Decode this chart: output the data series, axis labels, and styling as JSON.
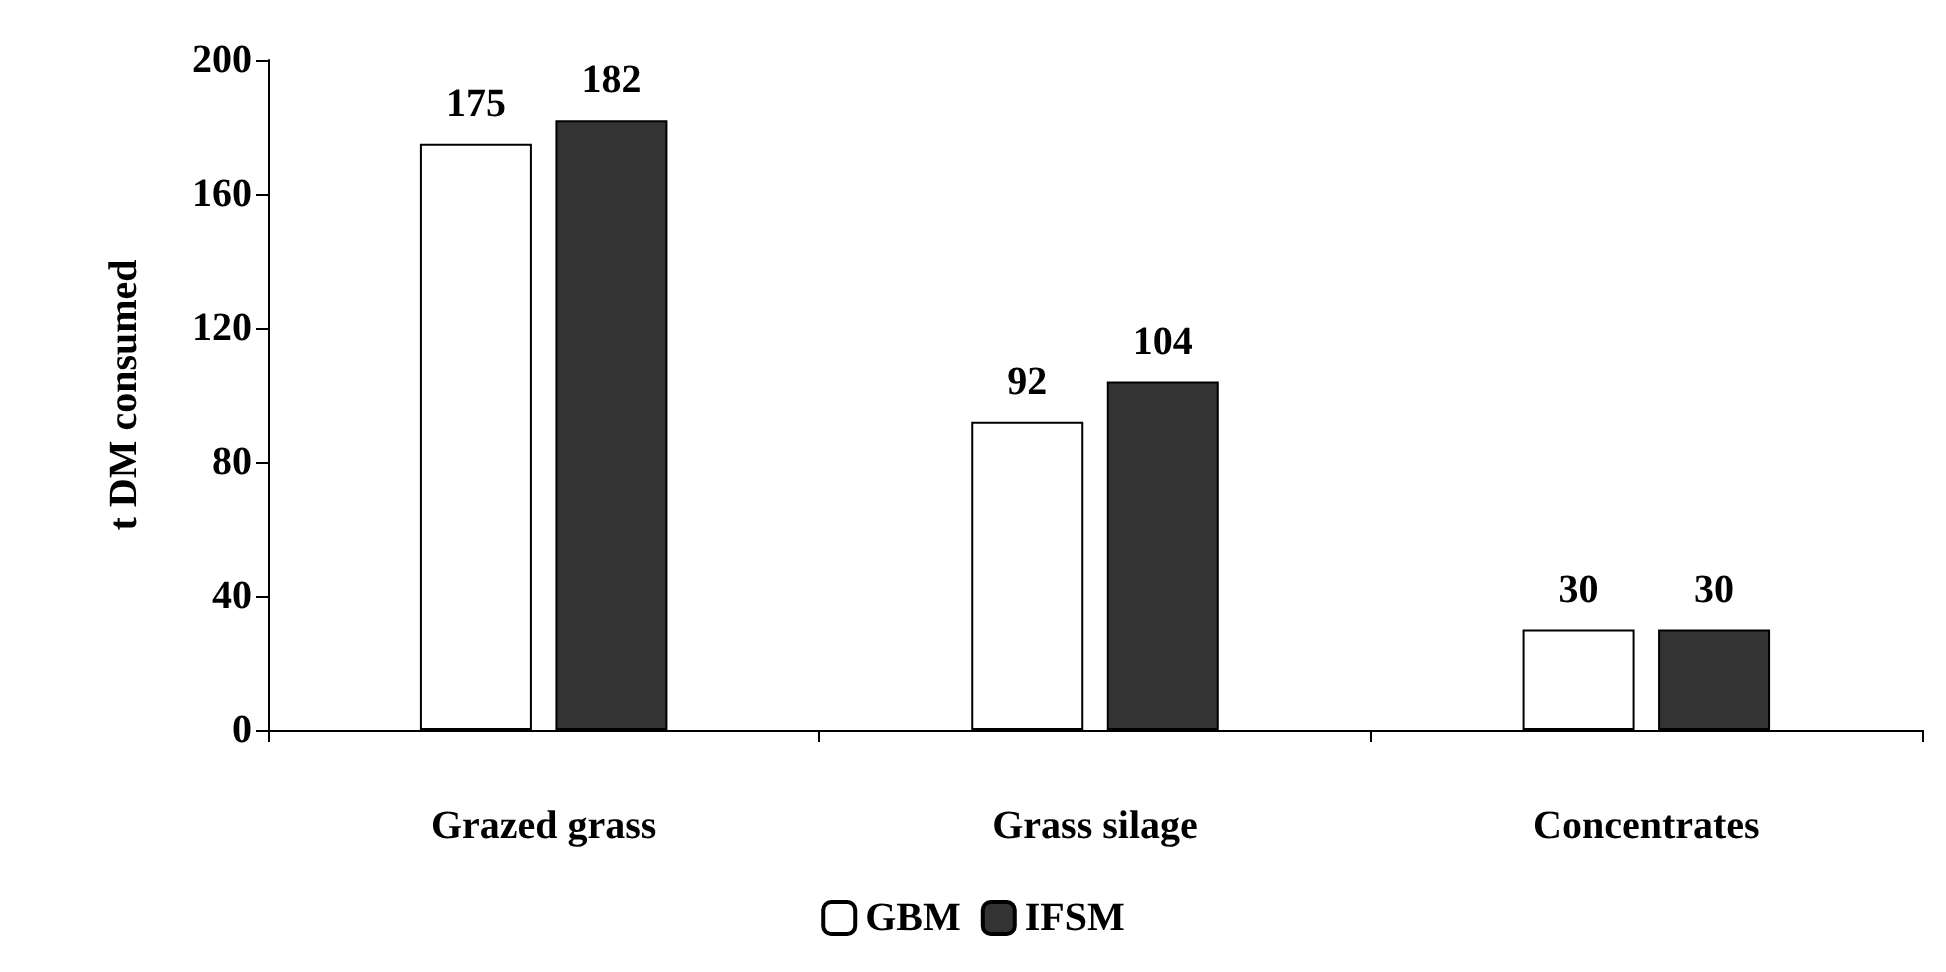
{
  "chart_data": {
    "type": "bar",
    "ylabel": "t DM consumed",
    "categories": [
      "Grazed grass",
      "Grass silage",
      "Concentrates"
    ],
    "series": [
      {
        "name": "GBM",
        "color": "#ffffff",
        "values": [
          175,
          92,
          30
        ]
      },
      {
        "name": "IFSM",
        "color": "#333333",
        "values": [
          182,
          104,
          30
        ]
      }
    ],
    "ylim": [
      0,
      200
    ],
    "yticks": [
      0,
      40,
      80,
      120,
      160,
      200
    ],
    "grid": false,
    "legend": "bottom",
    "data_labels": true
  }
}
